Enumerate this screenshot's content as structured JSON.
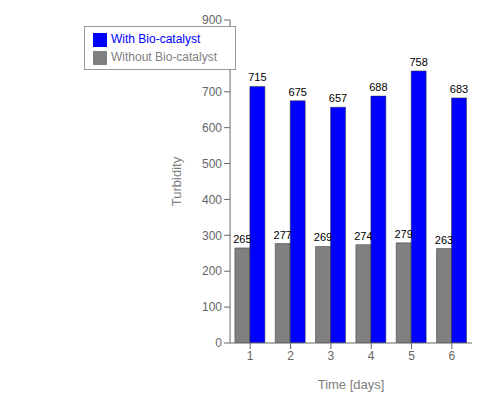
{
  "chart_data": {
    "type": "bar",
    "xlabel": "Time [days]",
    "ylabel": "Turbidity",
    "categories": [
      "1",
      "2",
      "3",
      "4",
      "5",
      "6"
    ],
    "series": [
      {
        "name": "Without Bio-catalyst",
        "color": "#808080",
        "values": [
          265,
          277,
          269,
          274,
          279,
          263
        ]
      },
      {
        "name": "With Bio-catalyst",
        "color": "#0000FF",
        "values": [
          715,
          675,
          657,
          688,
          758,
          683
        ]
      }
    ],
    "ylim": [
      0,
      900
    ],
    "yticks": [
      0,
      100,
      200,
      300,
      400,
      500,
      600,
      700,
      800,
      900
    ],
    "grid": false,
    "legend": "upper left",
    "data_labels": true
  }
}
